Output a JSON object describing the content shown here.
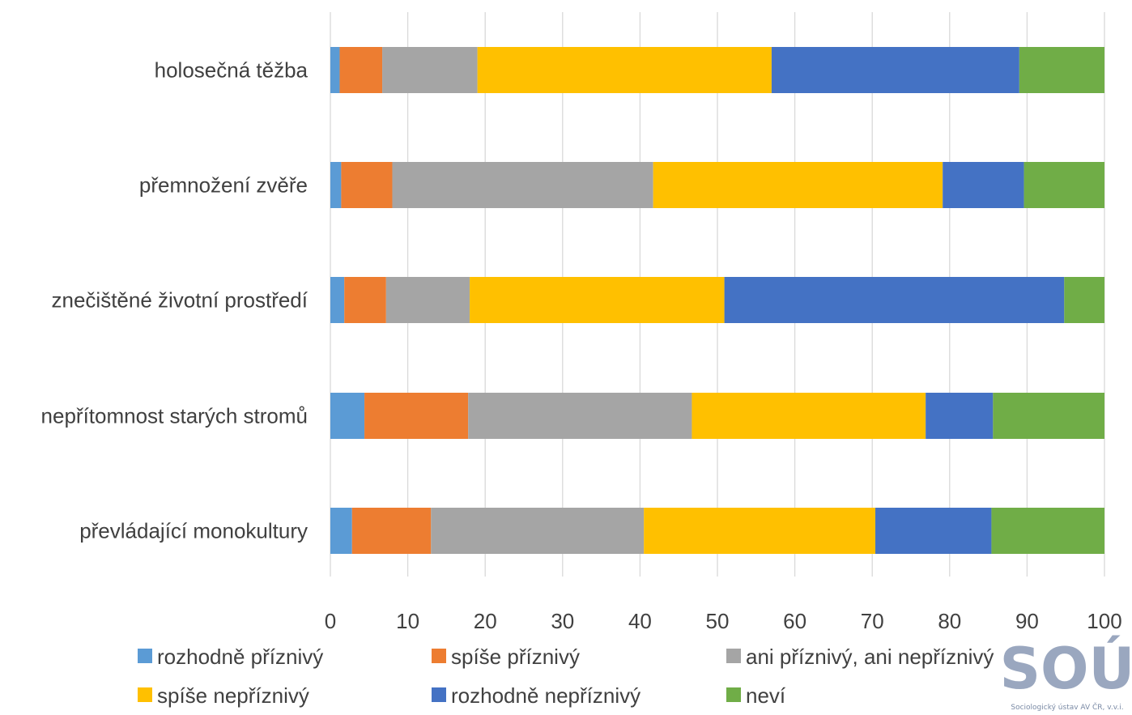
{
  "chart_data": {
    "type": "bar",
    "orientation": "horizontal",
    "stacked": true,
    "categories": [
      "holosečná těžba",
      "přemnožení zvěře",
      "znečištěné životní prostředí",
      "nepřítomnost starých stromů",
      "převládající monokultury"
    ],
    "series": [
      {
        "name": "rozhodně příznivý",
        "color": "#5b9bd5",
        "values": [
          1.2,
          1.4,
          1.8,
          4.4,
          2.8
        ]
      },
      {
        "name": "spíše příznivý",
        "color": "#ed7d31",
        "values": [
          5.5,
          6.6,
          5.4,
          13.4,
          10.2
        ]
      },
      {
        "name": "ani příznivý, ani nepříznivý",
        "color": "#a5a5a5",
        "values": [
          12.3,
          33.7,
          10.8,
          28.9,
          27.5
        ]
      },
      {
        "name": "spíše nepříznivý",
        "color": "#ffc000",
        "values": [
          38.0,
          37.4,
          32.9,
          30.2,
          29.9
        ]
      },
      {
        "name": "rozhodně nepříznivý",
        "color": "#4472c4",
        "values": [
          32.0,
          10.5,
          43.9,
          8.7,
          15.0
        ]
      },
      {
        "name": "neví",
        "color": "#70ad47",
        "values": [
          11.0,
          10.4,
          5.2,
          14.4,
          14.6
        ]
      }
    ],
    "xlim": [
      0,
      100
    ],
    "xticks": [
      0,
      10,
      20,
      30,
      40,
      50,
      60,
      70,
      80,
      90,
      100
    ],
    "xlabel": "",
    "ylabel": "",
    "title": "",
    "grid": "vertical",
    "legend_position": "bottom"
  },
  "logo": {
    "text": "SOÚ",
    "caption": "Sociologický ústav AV ČR, v.v.i.",
    "color": "#9aa7bf"
  }
}
